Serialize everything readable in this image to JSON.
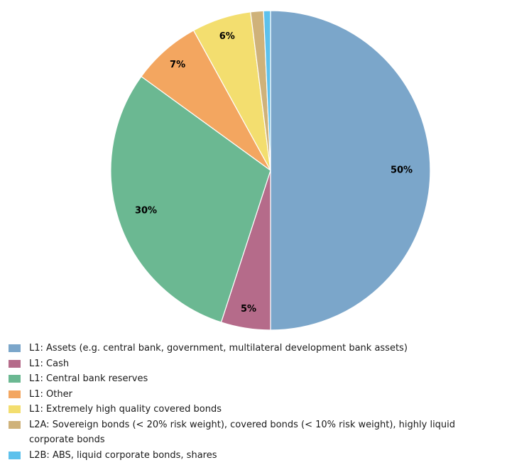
{
  "chart_data": {
    "type": "pie",
    "title": "",
    "slices": [
      {
        "label": "L1: Assets (e.g. central bank, government, multilateral development bank assets)",
        "value": 50,
        "display": "50%",
        "color": "#7ba6ca"
      },
      {
        "label": "L1: Cash",
        "value": 5,
        "display": "5%",
        "color": "#b56b8a"
      },
      {
        "label": "L1: Central bank reserves",
        "value": 30,
        "display": "30%",
        "color": "#6bb892"
      },
      {
        "label": "L1: Other",
        "value": 7,
        "display": "7%",
        "color": "#f3a660"
      },
      {
        "label": "L1: Extremely high quality covered bonds",
        "value": 6,
        "display": "6%",
        "color": "#f3de6f"
      },
      {
        "label": "L2A: Sovereign bonds (< 20% risk weight), covered bonds (< 10% risk weight), highly liquid corporate bonds",
        "value": 1.3,
        "display": "",
        "color": "#cfb27a"
      },
      {
        "label": "L2B: ABS, liquid corporate bonds, shares",
        "value": 0.7,
        "display": "",
        "color": "#5dc1ec"
      }
    ],
    "start_angle_deg": 0,
    "direction": "clockwise",
    "legend_position": "bottom"
  }
}
